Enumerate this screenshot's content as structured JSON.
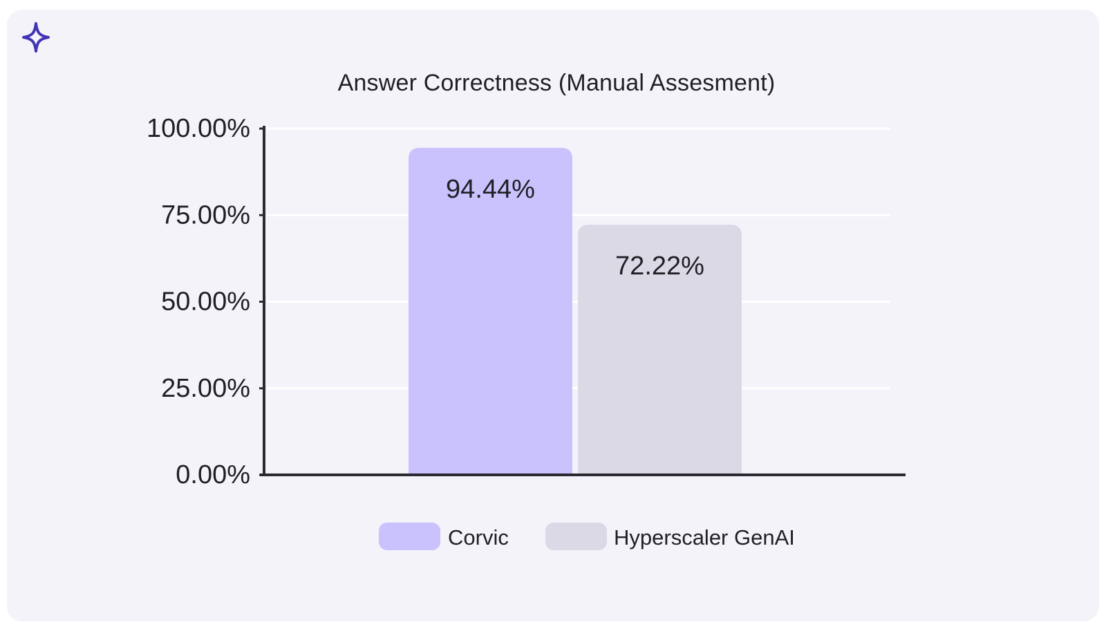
{
  "colors": {
    "card_background": "#f4f3f9",
    "logo": "#4334b5",
    "axis": "#2a2a30",
    "gridline": "#ffffff",
    "text": "#1f1f24"
  },
  "icons": {
    "logo": "four-point-sparkle-icon"
  },
  "chart_data": {
    "type": "bar",
    "title": "Answer Correctness (Manual Assesment)",
    "xlabel": "",
    "ylabel": "",
    "ylim": [
      0,
      100
    ],
    "yticks": [
      {
        "value": 100,
        "label": "100.00%"
      },
      {
        "value": 75,
        "label": "75.00%"
      },
      {
        "value": 50,
        "label": "50.00%"
      },
      {
        "value": 25,
        "label": "25.00%"
      },
      {
        "value": 0,
        "label": "0.00%"
      }
    ],
    "grid": true,
    "legend_position": "bottom",
    "series": [
      {
        "name": "Corvic",
        "value": 94.44,
        "label": "94.44%",
        "color": "#c9c2fd"
      },
      {
        "name": "Hyperscaler GenAI",
        "value": 72.22,
        "label": "72.22%",
        "color": "#dbd9e6"
      }
    ]
  }
}
